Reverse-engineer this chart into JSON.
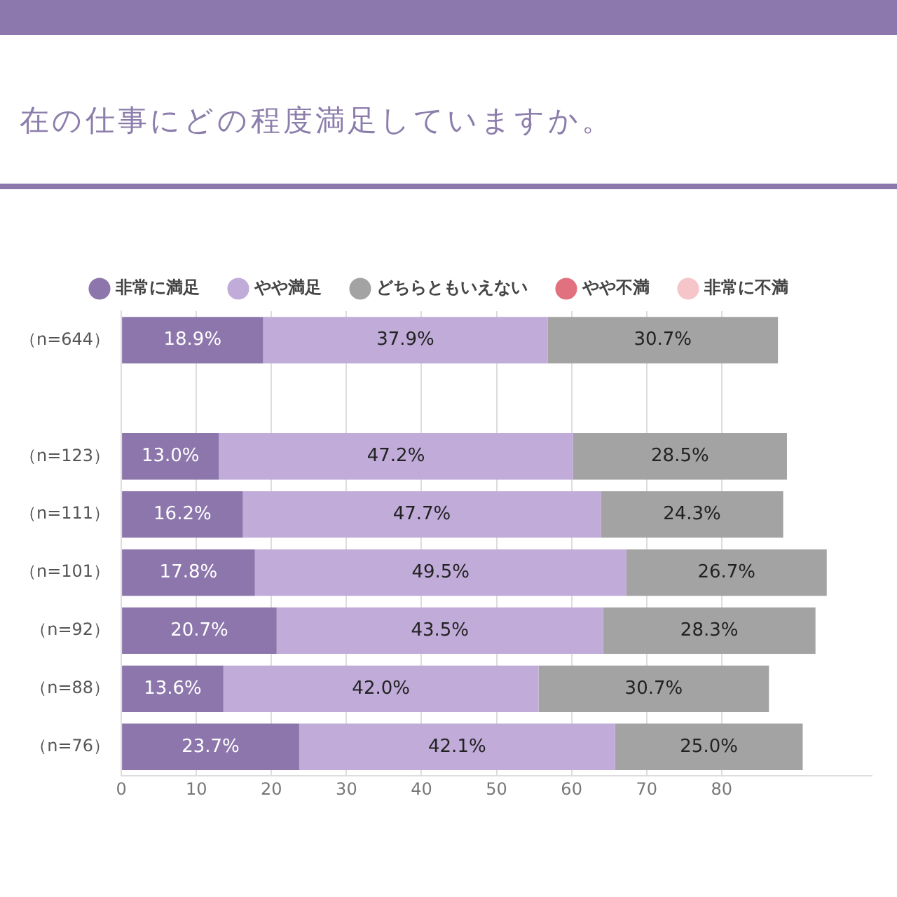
{
  "chart_data": {
    "type": "bar",
    "orientation": "horizontal",
    "stacked": true,
    "title": "在の仕事にどの程度満足していますか。",
    "categories": [
      "（n=644）",
      null,
      "（n=123）",
      "（n=111）",
      "（n=101）",
      "（n=92）",
      "（n=88）",
      "（n=76）"
    ],
    "series": [
      {
        "name": "非常に満足",
        "color": "#8c76ab",
        "values": [
          18.9,
          null,
          13.0,
          16.2,
          17.8,
          20.7,
          13.6,
          23.7
        ],
        "value_labels": [
          "18.9%",
          null,
          "13.0%",
          "16.2%",
          "17.8%",
          "20.7%",
          "13.6%",
          "23.7%"
        ]
      },
      {
        "name": "やや満足",
        "color": "#c0abd9",
        "values": [
          37.9,
          null,
          47.2,
          47.7,
          49.5,
          43.5,
          42.0,
          42.1
        ],
        "value_labels": [
          "37.9%",
          null,
          "47.2%",
          "47.7%",
          "49.5%",
          "43.5%",
          "42.0%",
          "42.1%"
        ]
      },
      {
        "name": "どちらともいえない",
        "color": "#a3a3a3",
        "values": [
          30.7,
          null,
          28.5,
          24.3,
          26.7,
          28.3,
          30.7,
          25.0
        ],
        "value_labels": [
          "30.7%",
          null,
          "28.5%",
          "24.3%",
          "26.7%",
          "28.3%",
          "30.7%",
          "25.0%"
        ]
      },
      {
        "name": "やや不満",
        "color": "#e2717f",
        "values": [
          null,
          null,
          null,
          null,
          null,
          null,
          null,
          null
        ]
      },
      {
        "name": "非常に不満",
        "color": "#f5c5ca",
        "values": [
          null,
          null,
          null,
          null,
          null,
          null,
          null,
          null
        ]
      }
    ],
    "xlim": [
      0,
      100
    ],
    "xticks": [
      0,
      10,
      20,
      30,
      40,
      50,
      60,
      70,
      80
    ],
    "grid": "x",
    "legend": "top"
  }
}
